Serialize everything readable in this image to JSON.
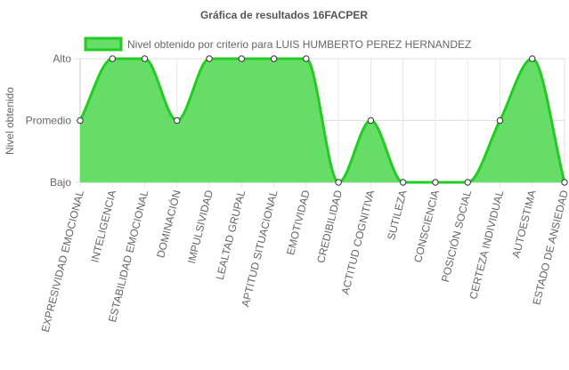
{
  "chart_data": {
    "type": "area",
    "title": "Gráfica de resultados 16FACPER",
    "ylabel": "Nivel obtenido",
    "xlabel": "",
    "y_levels": [
      "Bajo",
      "Promedio",
      "Alto"
    ],
    "categories": [
      "EXPRESIVIDAD EMOCIONAL",
      "INTELIGENCIA",
      "ESTABILIDAD EMOCIONAL",
      "DOMINACIÓN",
      "IMPULSIVIDAD",
      "LEALTAD GRUPAL",
      "APTITUD SITUACIONAL",
      "EMOTIVIDAD",
      "CREDIBILIDAD",
      "ACTITUD COGNITIVA",
      "SUTILEZA",
      "CONSCIENCIA",
      "POSICIÓN SOCIAL",
      "CERTEZA INDIVIDUAL",
      "AUTOESTIMA",
      "ESTADO DE ANSIEDAD"
    ],
    "series": [
      {
        "name": "Nivel obtenido por criterio para LUIS HUMBERTO PEREZ HERNANDEZ",
        "values": [
          1,
          2,
          2,
          1,
          2,
          2,
          2,
          2,
          0,
          1,
          0,
          0,
          0,
          1,
          2,
          0
        ],
        "fill_color": "#66dd66",
        "line_color": "#22cc22"
      }
    ],
    "ylim": [
      0,
      2
    ],
    "grid": true,
    "legend_position": "top"
  }
}
